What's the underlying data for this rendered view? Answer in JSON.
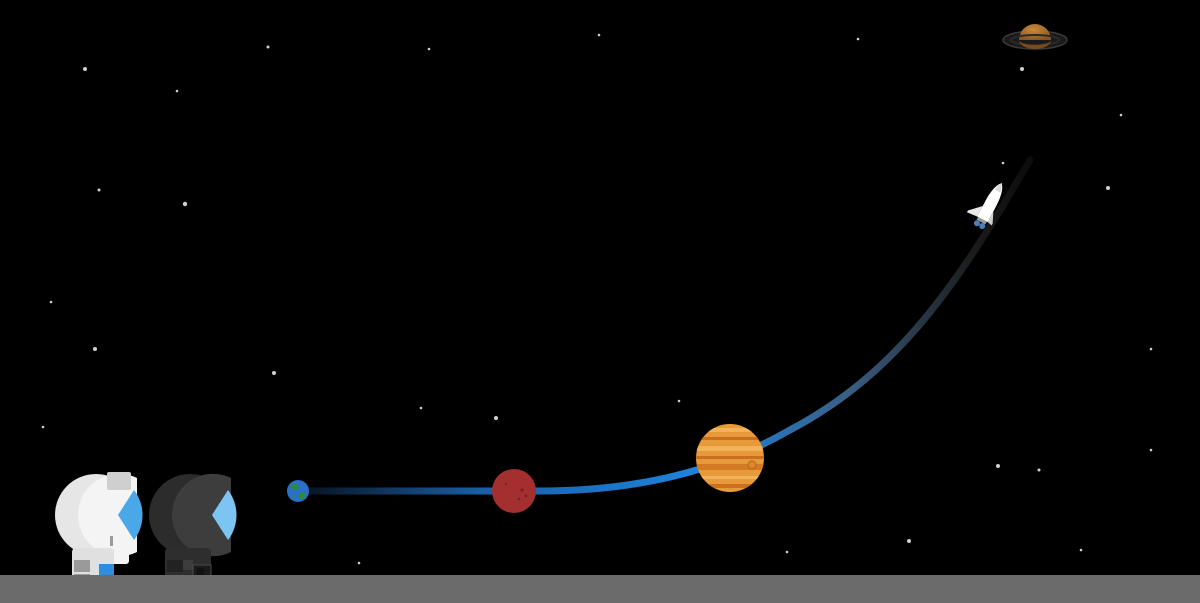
{
  "scene": {
    "background_color": "#000000",
    "ground_color": "#6b6b6b",
    "path_colors": {
      "start": "#0a1a2e",
      "mid": "#1e7fd6",
      "end": "#111111"
    },
    "planets": [
      {
        "name": "earth",
        "color": "#2a6fc9"
      },
      {
        "name": "mars",
        "color": "#a32f2f"
      },
      {
        "name": "jupiter",
        "color": "#e08a2e"
      },
      {
        "name": "saturn",
        "color": "#b8742a"
      }
    ],
    "spacecraft": {
      "name": "space-shuttle",
      "color": "#ffffff"
    },
    "astronauts": [
      {
        "name": "astronaut-white",
        "suit_color": "#f0f0f0",
        "visor_color": "#4aa8e8",
        "accent_color": "#2f8de0"
      },
      {
        "name": "astronaut-dark",
        "suit_color": "#3a3a3a",
        "visor_color": "#7cc4f2",
        "accent_color": "#222222"
      }
    ]
  }
}
